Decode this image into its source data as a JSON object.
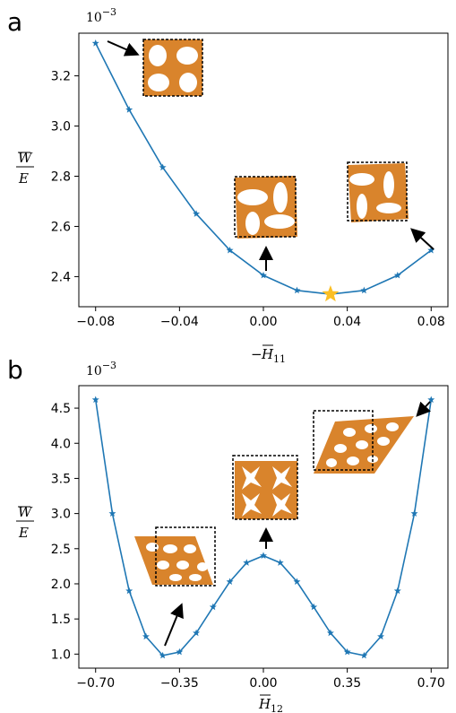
{
  "colors": {
    "series": "#1f77b4",
    "star": "#fbbf24",
    "material": "#d9842c",
    "hole": "#ffffff"
  },
  "chart_data": [
    {
      "panel": "a",
      "type": "line",
      "marker": "star",
      "x": [
        -0.08,
        -0.064,
        -0.048,
        -0.032,
        -0.016,
        0.0,
        0.016,
        0.032,
        0.048,
        0.064,
        0.08
      ],
      "y": [
        3.33,
        3.065,
        2.835,
        2.65,
        2.505,
        2.405,
        2.345,
        2.33,
        2.345,
        2.405,
        2.505
      ],
      "xlim": [
        -0.088,
        0.088
      ],
      "ylim": [
        2.28,
        3.37
      ],
      "xticks": [
        "−0.08",
        "−0.04",
        "0.00",
        "0.04",
        "0.08"
      ],
      "yticks": [
        "2.4",
        "2.6",
        "2.8",
        "3.0",
        "3.2"
      ],
      "xlabel": "−H̅11",
      "ylabel": "W̅ / E",
      "exponent": "10−3",
      "highlight_point": {
        "x": 0.032,
        "y": 2.33
      }
    },
    {
      "panel": "b",
      "type": "line",
      "marker": "star",
      "x": [
        -0.7,
        -0.63,
        -0.56,
        -0.49,
        -0.42,
        -0.35,
        -0.28,
        -0.21,
        -0.14,
        -0.07,
        0.0,
        0.07,
        0.14,
        0.21,
        0.28,
        0.35,
        0.42,
        0.49,
        0.56,
        0.63,
        0.7
      ],
      "y": [
        4.62,
        3.0,
        1.9,
        1.25,
        0.98,
        1.03,
        1.3,
        1.67,
        2.03,
        2.3,
        2.4,
        2.3,
        2.03,
        1.67,
        1.3,
        1.03,
        0.98,
        1.25,
        1.9,
        3.0,
        4.62
      ],
      "xlim": [
        -0.77,
        0.77
      ],
      "ylim": [
        0.8,
        4.82
      ],
      "xticks": [
        "−0.70",
        "−0.35",
        "0.00",
        "0.35",
        "0.70"
      ],
      "yticks": [
        "1.0",
        "1.5",
        "2.0",
        "2.5",
        "3.0",
        "3.5",
        "4.0",
        "4.5"
      ],
      "xlabel": "H̅12",
      "ylabel": "W̅ / E",
      "exponent": "10−3"
    }
  ]
}
